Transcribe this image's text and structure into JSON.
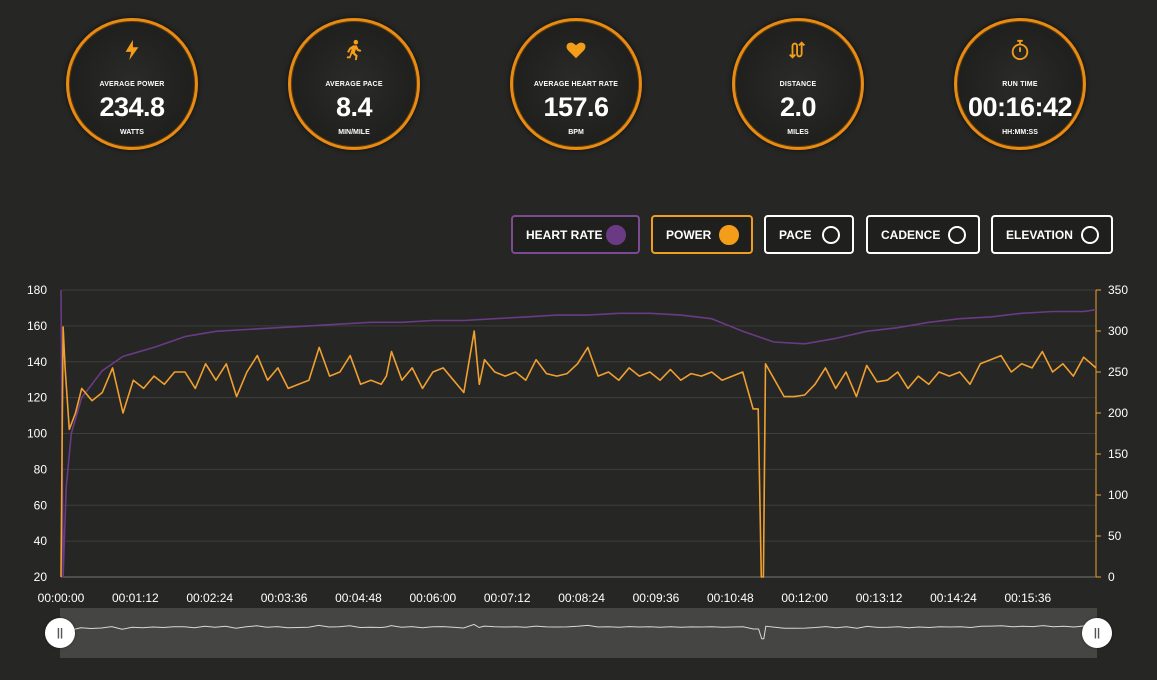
{
  "stats": [
    {
      "icon": "lightning-icon",
      "label": "AVERAGE POWER",
      "value": "234.8",
      "unit": "WATTS"
    },
    {
      "icon": "runner-icon",
      "label": "AVERAGE PACE",
      "value": "8.4",
      "unit": "MIN/MILE"
    },
    {
      "icon": "heart-icon",
      "label": "AVERAGE HEART RATE",
      "value": "157.6",
      "unit": "BPM"
    },
    {
      "icon": "route-icon",
      "label": "DISTANCE",
      "value": "2.0",
      "unit": "MILES"
    },
    {
      "icon": "stopwatch-icon",
      "label": "RUN TIME",
      "value": "00:16:42",
      "unit": "HH:MM:SS"
    }
  ],
  "toggles": {
    "heart_rate": {
      "label": "HEART RATE",
      "active": true,
      "color": "#6a3b84"
    },
    "power": {
      "label": "POWER",
      "active": true,
      "color": "#f49d1a"
    },
    "pace": {
      "label": "PACE",
      "active": false
    },
    "cadence": {
      "label": "CADENCE",
      "active": false
    },
    "elevation": {
      "label": "ELEVATION",
      "active": false
    }
  },
  "colors": {
    "accent": "#e98a12",
    "heart_rate": "#6a3b84",
    "power": "#f0a030",
    "background": "#262624"
  },
  "chart_data": {
    "type": "line",
    "x_unit": "seconds",
    "x_ticks": [
      "00:00:00",
      "00:01:12",
      "00:02:24",
      "00:03:36",
      "00:04:48",
      "00:06:00",
      "00:07:12",
      "00:08:24",
      "00:09:36",
      "00:10:48",
      "00:12:00",
      "00:13:12",
      "00:14:24",
      "00:15:36"
    ],
    "xlim": [
      0,
      1002
    ],
    "y_left": {
      "range": [
        20,
        180
      ],
      "ticks": [
        20,
        40,
        60,
        80,
        100,
        120,
        140,
        160,
        180
      ],
      "series": "Heart Rate"
    },
    "y_right": {
      "range": [
        0,
        350
      ],
      "ticks": [
        0,
        50,
        100,
        150,
        200,
        250,
        300,
        350
      ],
      "series": "Power"
    },
    "grid": true,
    "series": [
      {
        "name": "Heart Rate",
        "axis": "left",
        "color": "#6a3b84",
        "x": [
          0,
          2,
          5,
          10,
          20,
          40,
          60,
          90,
          120,
          150,
          180,
          210,
          240,
          270,
          300,
          330,
          360,
          390,
          420,
          450,
          480,
          510,
          540,
          570,
          600,
          630,
          660,
          690,
          720,
          750,
          780,
          810,
          840,
          870,
          900,
          930,
          960,
          990,
          1002
        ],
        "y": [
          180,
          20,
          70,
          100,
          120,
          135,
          143,
          148,
          154,
          157,
          158,
          159,
          160,
          161,
          162,
          162,
          163,
          163,
          164,
          165,
          166,
          166,
          167,
          167,
          166,
          164,
          157,
          151,
          150,
          153,
          157,
          159,
          162,
          164,
          165,
          167,
          168,
          168,
          169
        ]
      },
      {
        "name": "Power",
        "axis": "right",
        "color": "#f0a030",
        "x": [
          0,
          2,
          4,
          8,
          14,
          20,
          30,
          40,
          50,
          60,
          70,
          80,
          90,
          100,
          110,
          120,
          130,
          140,
          150,
          160,
          170,
          180,
          190,
          200,
          210,
          220,
          230,
          240,
          250,
          260,
          270,
          280,
          290,
          300,
          310,
          315,
          320,
          330,
          340,
          350,
          360,
          370,
          380,
          390,
          400,
          405,
          410,
          420,
          430,
          440,
          450,
          460,
          470,
          480,
          490,
          500,
          510,
          520,
          530,
          540,
          550,
          560,
          570,
          580,
          590,
          600,
          610,
          620,
          630,
          640,
          650,
          660,
          670,
          675,
          678,
          680,
          682,
          700,
          710,
          720,
          730,
          740,
          750,
          760,
          770,
          780,
          790,
          800,
          810,
          820,
          830,
          840,
          850,
          860,
          870,
          880,
          890,
          900,
          910,
          920,
          930,
          940,
          950,
          960,
          970,
          980,
          990,
          1002
        ],
        "y": [
          0,
          305,
          255,
          180,
          200,
          230,
          215,
          225,
          255,
          200,
          240,
          230,
          245,
          235,
          250,
          250,
          230,
          260,
          240,
          260,
          220,
          250,
          270,
          240,
          255,
          230,
          235,
          240,
          280,
          245,
          250,
          270,
          235,
          240,
          235,
          245,
          275,
          240,
          255,
          230,
          250,
          255,
          240,
          225,
          300,
          235,
          265,
          250,
          245,
          250,
          240,
          265,
          248,
          245,
          248,
          260,
          280,
          245,
          250,
          240,
          255,
          245,
          250,
          240,
          253,
          240,
          248,
          245,
          250,
          240,
          245,
          250,
          205,
          205,
          0,
          0,
          260,
          220,
          220,
          222,
          235,
          255,
          230,
          250,
          220,
          258,
          238,
          240,
          250,
          230,
          245,
          235,
          250,
          245,
          250,
          235,
          260,
          265,
          270,
          250,
          260,
          255,
          275,
          250,
          260,
          245,
          268,
          255
        ]
      }
    ]
  }
}
